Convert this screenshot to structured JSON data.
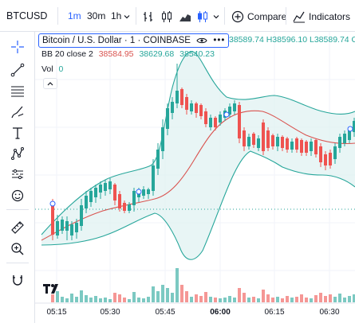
{
  "toolbar": {
    "symbol": "BTCUSD",
    "intervals": [
      "1m",
      "30m",
      "1h"
    ],
    "active_interval": "1m",
    "interval_dropdown_icon": "chevron-down-icon",
    "indicators_icon": "indicators-icon",
    "compare_label": "Compare",
    "indicators_label": "Indicators",
    "accent_color": "#2962ff"
  },
  "left_tools": [
    {
      "name": "crosshair-icon"
    },
    {
      "name": "trend-line-icon"
    },
    {
      "name": "fib-retracement-icon"
    },
    {
      "name": "brush-icon"
    },
    {
      "name": "text-icon"
    },
    {
      "name": "pattern-icon"
    },
    {
      "name": "prediction-icon"
    },
    {
      "name": "emoji-icon"
    },
    {
      "name": "ruler-icon"
    },
    {
      "name": "zoom-in-icon"
    },
    {
      "name": "magnet-icon"
    }
  ],
  "legend": {
    "title": "Bitcoin / U.S. Dollar · 1 · COINBASE",
    "ohlc": "38589.74 H38596.10 L38589.74 C38",
    "bb_label": "BB 20 close 2",
    "bb_basis": "38584.95",
    "bb_upper": "38629.68",
    "bb_lower": "38540.23",
    "vol_label": "Vol",
    "vol_value": "0",
    "colors": {
      "bb_basis": "#d9534f",
      "bb_upper": "#26a69a",
      "bb_lower": "#26a69a"
    }
  },
  "chart_data": {
    "type": "candlestick",
    "x_ticks": [
      "05:15",
      "05:30",
      "05:45",
      "06:00",
      "06:15",
      "06:30"
    ],
    "indicators": [
      "Bollinger Bands (20, close, 2)",
      "Volume"
    ],
    "colors": {
      "up": "#26a69a",
      "down": "#ef5350",
      "band_fill": "#e0f2f1"
    }
  }
}
